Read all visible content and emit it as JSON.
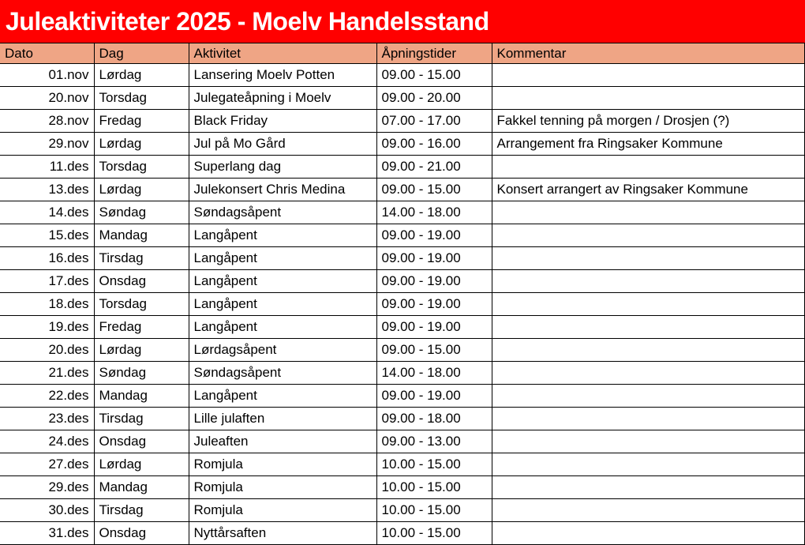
{
  "title": "Juleaktiviteter 2025 - Moelv Handelsstand",
  "colors": {
    "title_bg": "#ff0000",
    "title_text": "#ffffff",
    "header_bg": "#efa585",
    "grid_border": "#000000",
    "cell_text": "#000000"
  },
  "table": {
    "columns": [
      {
        "key": "dato",
        "label": "Dato"
      },
      {
        "key": "dag",
        "label": "Dag"
      },
      {
        "key": "aktivitet",
        "label": "Aktivitet"
      },
      {
        "key": "tider",
        "label": "Åpningstider"
      },
      {
        "key": "kommentar",
        "label": "Kommentar"
      }
    ],
    "rows": [
      {
        "dato": "01.nov",
        "dag": "Lørdag",
        "aktivitet": "Lansering Moelv Potten",
        "tider": "09.00 - 15.00",
        "kommentar": ""
      },
      {
        "dato": "20.nov",
        "dag": "Torsdag",
        "aktivitet": "Julegateåpning i Moelv",
        "tider": "09.00 - 20.00",
        "kommentar": ""
      },
      {
        "dato": "28.nov",
        "dag": "Fredag",
        "aktivitet": "Black Friday",
        "tider": "07.00 - 17.00",
        "kommentar": "Fakkel tenning på morgen / Drosjen (?)"
      },
      {
        "dato": "29.nov",
        "dag": "Lørdag",
        "aktivitet": "Jul på Mo Gård",
        "tider": "09.00 - 16.00",
        "kommentar": "Arrangement fra Ringsaker Kommune"
      },
      {
        "dato": "11.des",
        "dag": "Torsdag",
        "aktivitet": "Superlang dag",
        "tider": "09.00 - 21.00",
        "kommentar": ""
      },
      {
        "dato": "13.des",
        "dag": "Lørdag",
        "aktivitet": "Julekonsert Chris Medina",
        "tider": "09.00 - 15.00",
        "kommentar": "Konsert arrangert av Ringsaker Kommune"
      },
      {
        "dato": "14.des",
        "dag": "Søndag",
        "aktivitet": "Søndagsåpent",
        "tider": "14.00 - 18.00",
        "kommentar": ""
      },
      {
        "dato": "15.des",
        "dag": "Mandag",
        "aktivitet": "Langåpent",
        "tider": "09.00 - 19.00",
        "kommentar": ""
      },
      {
        "dato": "16.des",
        "dag": "Tirsdag",
        "aktivitet": "Langåpent",
        "tider": "09.00 - 19.00",
        "kommentar": ""
      },
      {
        "dato": "17.des",
        "dag": "Onsdag",
        "aktivitet": "Langåpent",
        "tider": "09.00 - 19.00",
        "kommentar": ""
      },
      {
        "dato": "18.des",
        "dag": "Torsdag",
        "aktivitet": "Langåpent",
        "tider": "09.00 - 19.00",
        "kommentar": ""
      },
      {
        "dato": "19.des",
        "dag": "Fredag",
        "aktivitet": "Langåpent",
        "tider": "09.00 - 19.00",
        "kommentar": ""
      },
      {
        "dato": "20.des",
        "dag": "Lørdag",
        "aktivitet": "Lørdagsåpent",
        "tider": "09.00 - 15.00",
        "kommentar": ""
      },
      {
        "dato": "21.des",
        "dag": "Søndag",
        "aktivitet": "Søndagsåpent",
        "tider": "14.00 - 18.00",
        "kommentar": ""
      },
      {
        "dato": "22.des",
        "dag": "Mandag",
        "aktivitet": "Langåpent",
        "tider": "09.00 - 19.00",
        "kommentar": ""
      },
      {
        "dato": "23.des",
        "dag": "Tirsdag",
        "aktivitet": "Lille julaften",
        "tider": "09.00 - 18.00",
        "kommentar": ""
      },
      {
        "dato": "24.des",
        "dag": "Onsdag",
        "aktivitet": "Juleaften",
        "tider": "09.00 - 13.00",
        "kommentar": ""
      },
      {
        "dato": "27.des",
        "dag": "Lørdag",
        "aktivitet": "Romjula",
        "tider": "10.00 - 15.00",
        "kommentar": ""
      },
      {
        "dato": "29.des",
        "dag": "Mandag",
        "aktivitet": "Romjula",
        "tider": "10.00 - 15.00",
        "kommentar": ""
      },
      {
        "dato": "30.des",
        "dag": "Tirsdag",
        "aktivitet": "Romjula",
        "tider": "10.00 - 15.00",
        "kommentar": ""
      },
      {
        "dato": "31.des",
        "dag": "Onsdag",
        "aktivitet": "Nyttårsaften",
        "tider": "10.00 - 15.00",
        "kommentar": ""
      }
    ]
  }
}
